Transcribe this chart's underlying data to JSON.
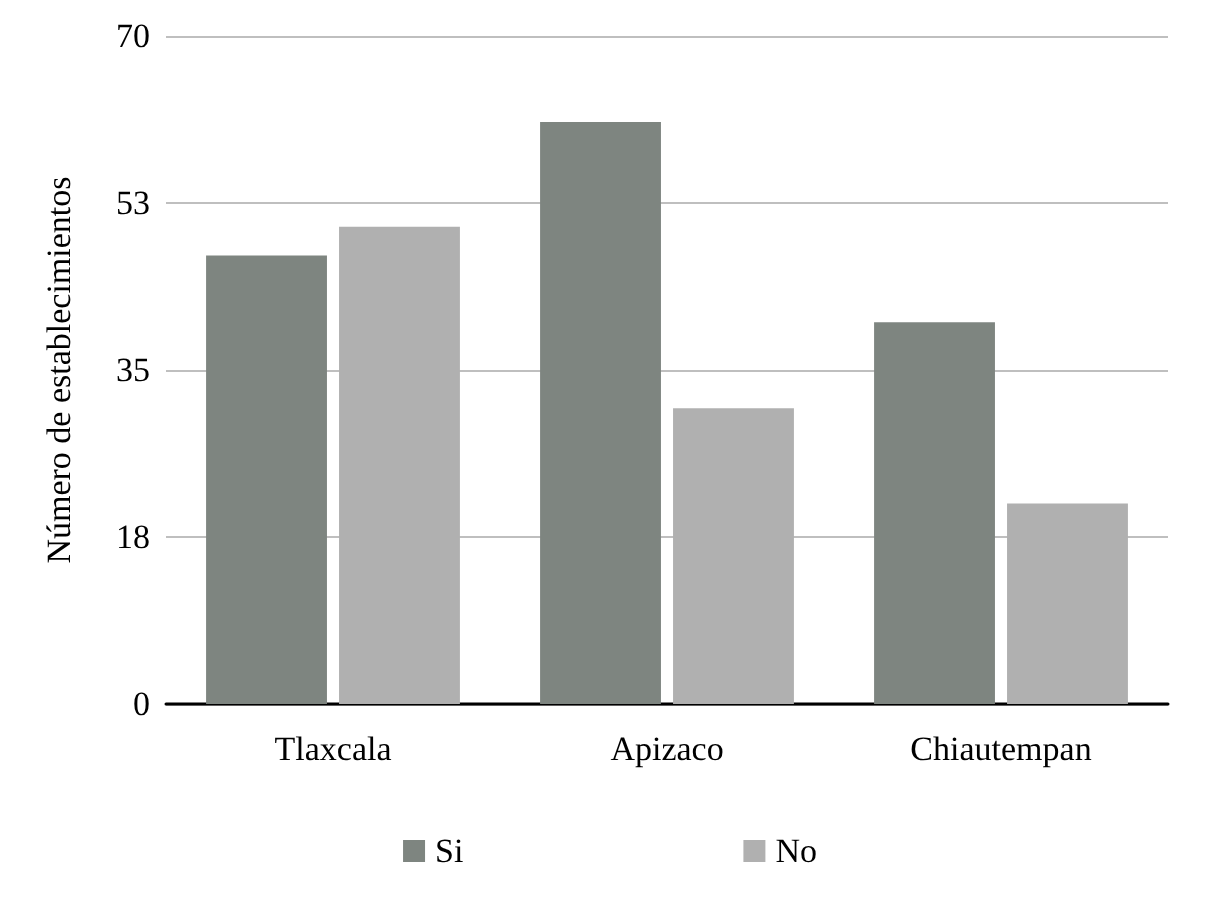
{
  "chart_data": {
    "type": "bar",
    "ylabel": "Número de establecimientos",
    "categories": [
      "Tlaxcala",
      "Apizaco",
      "Chiautempan"
    ],
    "series": [
      {
        "name": "Si",
        "color": "#7e8580",
        "values": [
          47,
          61,
          40
        ]
      },
      {
        "name": "No",
        "color": "#b0b0b0",
        "values": [
          50,
          31,
          21
        ]
      }
    ],
    "ylim": [
      0,
      70
    ],
    "yticks": [
      0,
      {
        "value": 17.5,
        "label": "18"
      },
      {
        "value": 35,
        "label": "35"
      },
      {
        "value": 52.5,
        "label": "53"
      },
      {
        "value": 70,
        "label": "70"
      }
    ],
    "grid": "y",
    "legend": "bottom"
  }
}
